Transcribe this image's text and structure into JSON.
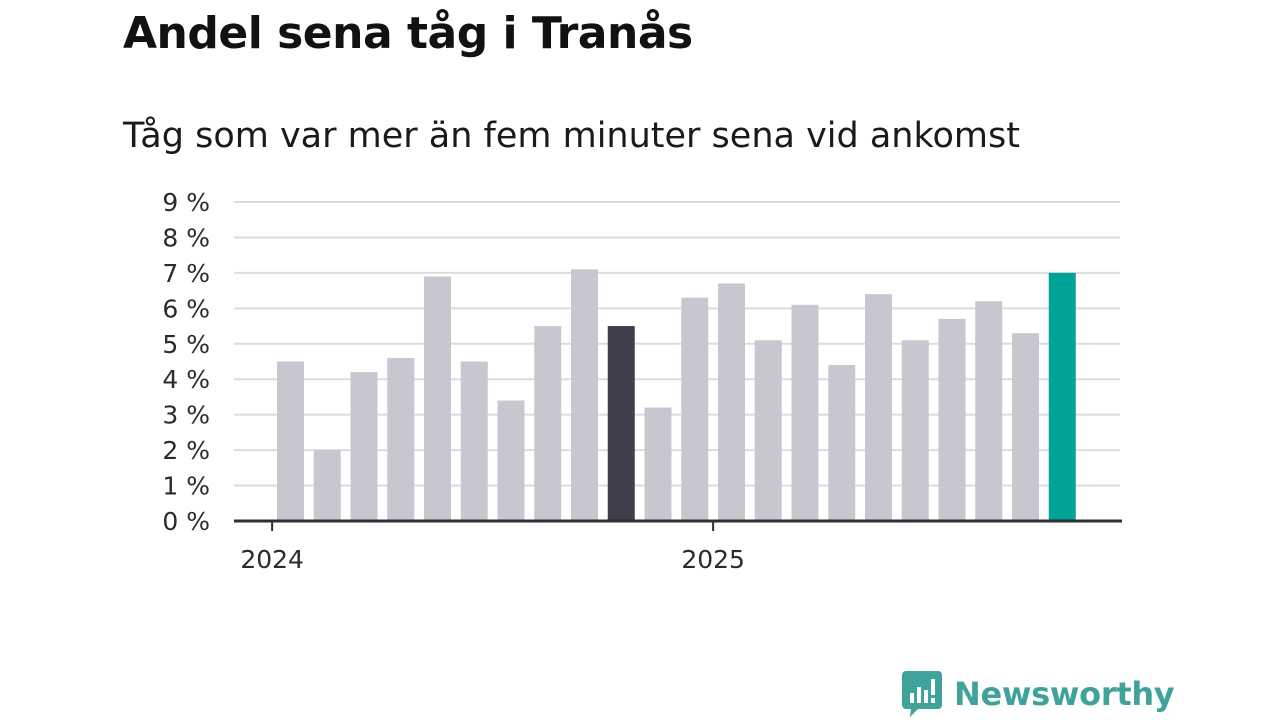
{
  "chart_data": {
    "type": "bar",
    "title": "Andel sena tåg i Tranås",
    "subtitle": "Tåg som var mer än fem minuter sena vid ankomst",
    "values": [
      4.5,
      2.0,
      4.2,
      4.6,
      6.9,
      4.5,
      3.4,
      5.5,
      7.1,
      5.5,
      3.2,
      6.3,
      6.7,
      5.1,
      6.1,
      4.4,
      6.4,
      5.1,
      5.7,
      6.2,
      5.3,
      7.0
    ],
    "highlight": {
      "dark_index": 9,
      "accent_index": 21
    },
    "ylim": [
      0,
      9
    ],
    "yticks": [
      "0 %",
      "1 %",
      "2 %",
      "3 %",
      "4 %",
      "5 %",
      "6 %",
      "7 %",
      "8 %",
      "9 %"
    ],
    "xticks": [
      {
        "label": "2024",
        "position": -0.5
      },
      {
        "label": "2025",
        "position": 11.5
      }
    ],
    "grid": true,
    "colors": {
      "bar": "#c8c7cf",
      "dark": "#403e4b",
      "accent": "#00a398",
      "grid": "#dcdcdc",
      "axis": "#2f2f2f"
    }
  },
  "brand": {
    "name": "Newsworthy",
    "logo_icon": "bar-chart-badge-icon",
    "color": "#3fa39a"
  }
}
